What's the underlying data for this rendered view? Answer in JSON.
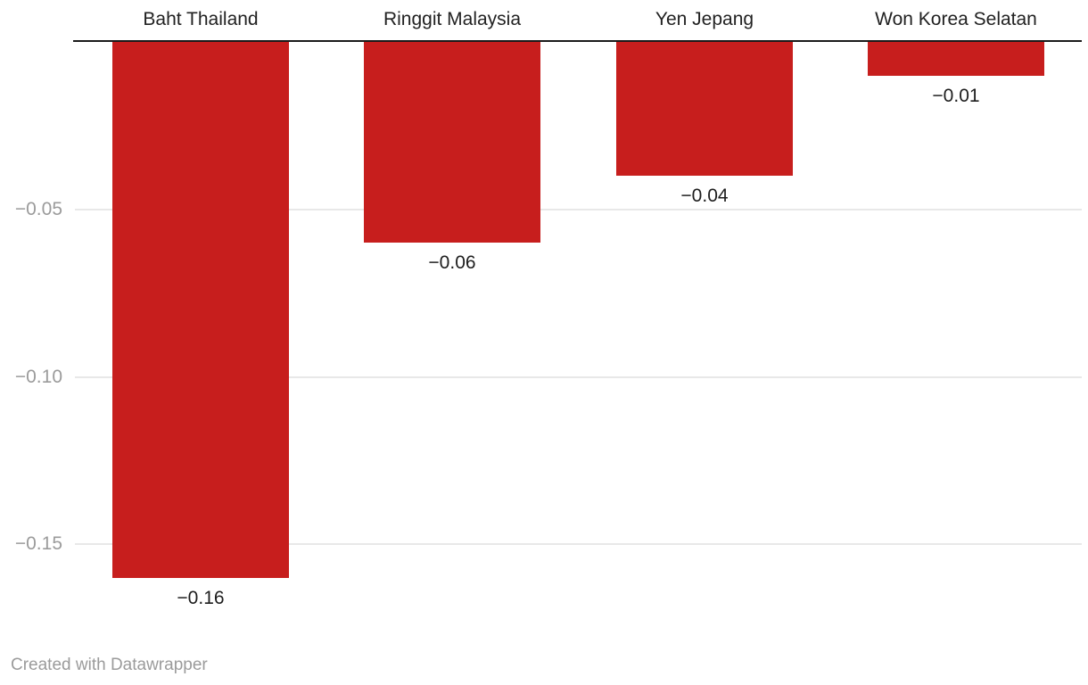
{
  "chart_data": {
    "type": "bar",
    "orientation": "vertical-negative",
    "categories": [
      "Baht Thailand",
      "Ringgit Malaysia",
      "Yen Jepang",
      "Won Korea Selatan"
    ],
    "values": [
      -0.16,
      -0.06,
      -0.04,
      -0.01
    ],
    "value_labels": [
      "−0.16",
      "−0.06",
      "−0.04",
      "−0.01"
    ],
    "title": "",
    "xlabel": "",
    "ylabel": "",
    "ylim": [
      -0.175,
      0
    ],
    "yticks": [
      -0.05,
      -0.1,
      -0.15
    ],
    "ytick_labels": [
      "−0.05",
      "−0.10",
      "−0.15"
    ],
    "grid": true,
    "legend": "none",
    "bar_color": "#c71e1d"
  },
  "colors": {
    "bar": "#c71e1d",
    "gridline": "#e8e8e8",
    "baseline": "#1a1a1a",
    "tick_text": "#9b9b9b",
    "category_text": "#222222",
    "value_text": "#1d1d1d",
    "footer_text": "#9b9b9b",
    "background": "#ffffff"
  },
  "footer": {
    "credit": "Created with Datawrapper"
  }
}
